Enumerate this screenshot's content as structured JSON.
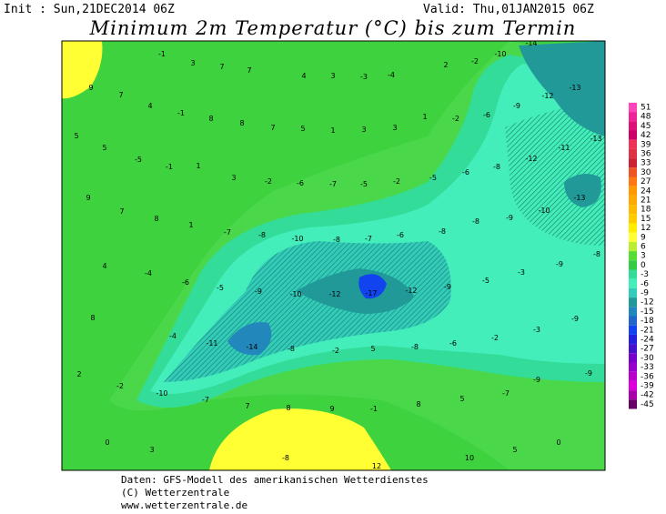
{
  "header": {
    "init": "Init : Sun,21DEC2014 06Z",
    "valid": "Valid: Thu,01JAN2015 06Z",
    "title": "Minimum 2m Temperatur (°C) bis zum Termin"
  },
  "legend": {
    "levels": [
      51,
      48,
      45,
      42,
      39,
      36,
      33,
      30,
      27,
      24,
      21,
      18,
      15,
      12,
      9,
      6,
      3,
      0,
      -3,
      -6,
      -9,
      -12,
      -15,
      -18,
      -21,
      -24,
      -27,
      -30,
      -33,
      -36,
      -39,
      -42,
      -45
    ],
    "colors": [
      "#ff44bb",
      "#ee2299",
      "#dd1177",
      "#cc0066",
      "#ee3355",
      "#dd3344",
      "#cc2233",
      "#ee5522",
      "#ff7711",
      "#ff9900",
      "#ffaa00",
      "#ffbb00",
      "#ffcc00",
      "#ffee00",
      "#ffff33",
      "#bbee33",
      "#55dd33",
      "#33cc44",
      "#33dd99",
      "#44eebb",
      "#33ccbb",
      "#229999",
      "#2288bb",
      "#2266cc",
      "#1144ee",
      "#2222dd",
      "#4411cc",
      "#7700cc",
      "#9900cc",
      "#bb00cc",
      "#dd00dd",
      "#aa00aa",
      "#660066"
    ]
  },
  "map_labels": [
    -1,
    3,
    7,
    7,
    4,
    3,
    -3,
    -4,
    2,
    -2,
    -10,
    -14,
    -13,
    9,
    7,
    4,
    -1,
    8,
    8,
    7,
    5,
    1,
    3,
    3,
    1,
    -2,
    -6,
    -9,
    -12,
    -13,
    5,
    5,
    -5,
    -1,
    1,
    3,
    -2,
    -6,
    -7,
    -5,
    -2,
    -5,
    -6,
    -8,
    -12,
    -11,
    -13,
    9,
    7,
    8,
    1,
    -7,
    -8,
    -10,
    -8,
    -7,
    -6,
    -8,
    -8,
    -9,
    -10,
    4,
    -4,
    -6,
    -5,
    -9,
    -10,
    -12,
    -17,
    -12,
    -9,
    -5,
    -3,
    -9,
    -8,
    8,
    -4,
    -11,
    -14,
    -8,
    -2,
    5,
    -8,
    -6,
    -2,
    -3,
    -9,
    2,
    -2,
    -10,
    -7,
    7,
    8,
    9,
    -1,
    8,
    5,
    -7,
    -9,
    -9,
    0,
    3,
    -8,
    12,
    10,
    5,
    0
  ],
  "footer": [
    "Daten: GFS-Modell des amerikanischen Wetterdienstes",
    "(C) Wetterzentrale",
    "www.wetterzentrale.de"
  ]
}
